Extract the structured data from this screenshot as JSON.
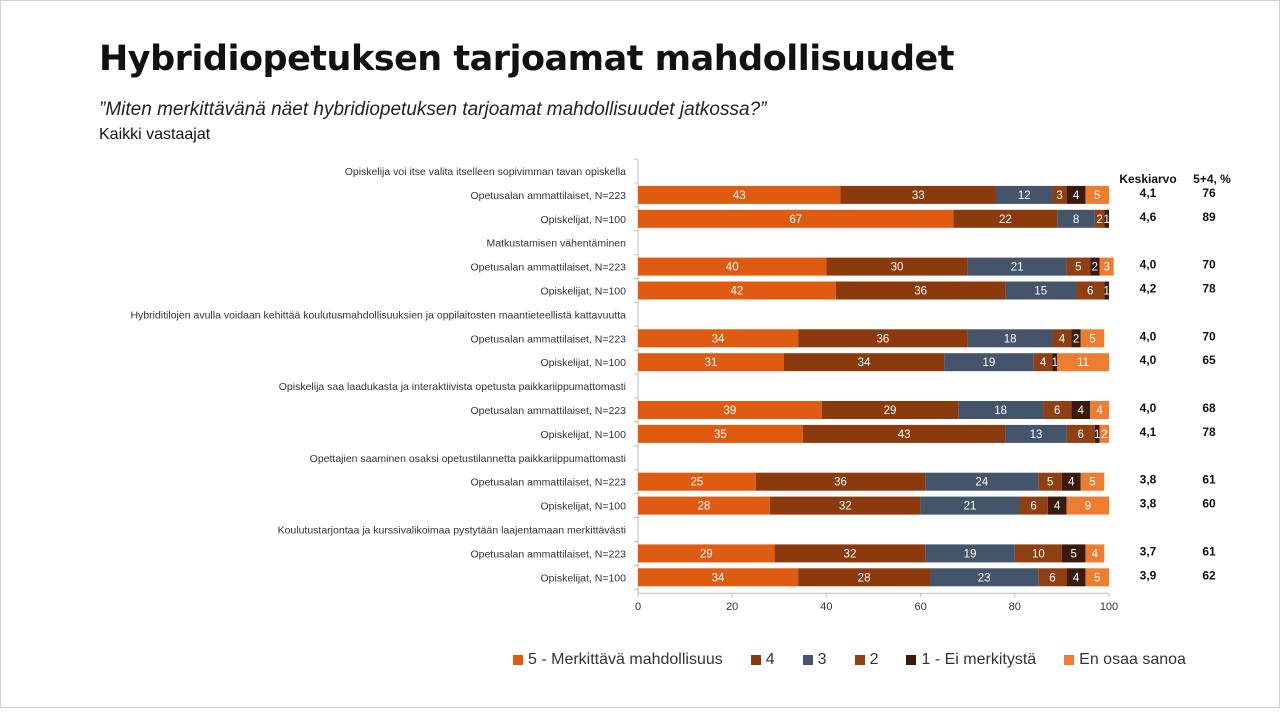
{
  "title": "Hybridiopetuksen tarjoamat mahdollisuudet",
  "subtitle": "”Miten merkittävänä näet hybridiopetuksen tarjoamat mahdollisuudet jatkossa?”",
  "group_label": "Kaikki vastaajat",
  "chart_data": {
    "type": "bar",
    "orientation": "horizontal",
    "stacked": true,
    "xlim": [
      0,
      100
    ],
    "xticks": [
      0,
      20,
      40,
      60,
      80,
      100
    ],
    "grid": false,
    "legend_position": "bottom",
    "stat_headers": [
      "Keskiarvo",
      "5+4, %"
    ],
    "series": [
      {
        "name": "5 - Merkittävä mahdollisuus",
        "color": "#E05B12"
      },
      {
        "name": "4",
        "color": "#8A3A0D"
      },
      {
        "name": "3",
        "color": "#44546A"
      },
      {
        "name": "2",
        "color": "#8F3F12"
      },
      {
        "name": "1 - Ei merkitystä",
        "color": "#3A1A0C"
      },
      {
        "name": "En osaa sanoa",
        "color": "#ED7D31"
      }
    ],
    "groups": [
      {
        "label": "Opiskelija voi itse valita itselleen sopivimman tavan opiskella",
        "rows": [
          {
            "label": "Opetusalan ammattilaiset, N=223",
            "values": [
              43,
              33,
              12,
              3,
              4,
              5
            ],
            "mean": "4,1",
            "top2": "76"
          },
          {
            "label": "Opiskelijat, N=100",
            "values": [
              67,
              22,
              8,
              2,
              1,
              0
            ],
            "mean": "4,6",
            "top2": "89"
          }
        ]
      },
      {
        "label": "Matkustamisen vähentäminen",
        "rows": [
          {
            "label": "Opetusalan ammattilaiset, N=223",
            "values": [
              40,
              30,
              21,
              5,
              2,
              3
            ],
            "mean": "4,0",
            "top2": "70"
          },
          {
            "label": "Opiskelijat, N=100",
            "values": [
              42,
              36,
              15,
              6,
              1,
              0
            ],
            "mean": "4,2",
            "top2": "78"
          }
        ]
      },
      {
        "label": "Hybriditilojen avulla voidaan kehittää koulutusmahdollisuuksien ja oppilaitosten maantieteellistä kattavuutta",
        "rows": [
          {
            "label": "Opetusalan ammattilaiset, N=223",
            "values": [
              34,
              36,
              18,
              4,
              2,
              5
            ],
            "mean": "4,0",
            "top2": "70"
          },
          {
            "label": "Opiskelijat, N=100",
            "values": [
              31,
              34,
              19,
              4,
              1,
              11
            ],
            "mean": "4,0",
            "top2": "65"
          }
        ]
      },
      {
        "label": "Opiskelija saa laadukasta ja interaktiivista opetusta paikkariippumattomasti",
        "rows": [
          {
            "label": "Opetusalan ammattilaiset, N=223",
            "values": [
              39,
              29,
              18,
              6,
              4,
              4
            ],
            "mean": "4,0",
            "top2": "68"
          },
          {
            "label": "Opiskelijat, N=100",
            "values": [
              35,
              43,
              13,
              6,
              1,
              2
            ],
            "mean": "4,1",
            "top2": "78"
          }
        ]
      },
      {
        "label": "Opettajien saaminen osaksi opetustilannetta paikkariippumattomasti",
        "rows": [
          {
            "label": "Opetusalan ammattilaiset, N=223",
            "values": [
              25,
              36,
              24,
              5,
              4,
              5
            ],
            "mean": "3,8",
            "top2": "61"
          },
          {
            "label": "Opiskelijat, N=100",
            "values": [
              28,
              32,
              21,
              6,
              4,
              9
            ],
            "mean": "3,8",
            "top2": "60"
          }
        ]
      },
      {
        "label": "Koulutustarjontaa ja kurssivalikoimaa pystytään laajentamaan merkittävästi",
        "rows": [
          {
            "label": "Opetusalan ammattilaiset, N=223",
            "values": [
              29,
              32,
              19,
              10,
              5,
              4
            ],
            "mean": "3,7",
            "top2": "61"
          },
          {
            "label": "Opiskelijat, N=100",
            "values": [
              34,
              28,
              23,
              6,
              4,
              5
            ],
            "mean": "3,9",
            "top2": "62"
          }
        ]
      }
    ]
  }
}
